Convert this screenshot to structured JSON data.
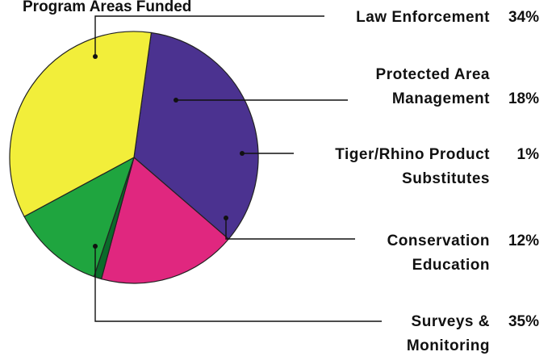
{
  "chart_data": {
    "type": "pie",
    "title": "Program Areas Funded",
    "slices": [
      {
        "label_lines": [
          "Law Enforcement"
        ],
        "value": 34,
        "value_label": "34%",
        "color": "#4b3290"
      },
      {
        "label_lines": [
          "Protected Area",
          "Management"
        ],
        "value": 18,
        "value_label": "18%",
        "color": "#e0277f"
      },
      {
        "label_lines": [
          "Tiger/Rhino Product",
          "Substitutes"
        ],
        "value": 1,
        "value_label": "1%",
        "color": "#0a6b2a"
      },
      {
        "label_lines": [
          "Conservation",
          "Education"
        ],
        "value": 12,
        "value_label": "12%",
        "color": "#1fa53f"
      },
      {
        "label_lines": [
          "Surveys &",
          "Monitoring"
        ],
        "value": 35,
        "value_label": "35%",
        "color": "#f2ee3a"
      }
    ],
    "legend": "callouts-right"
  }
}
